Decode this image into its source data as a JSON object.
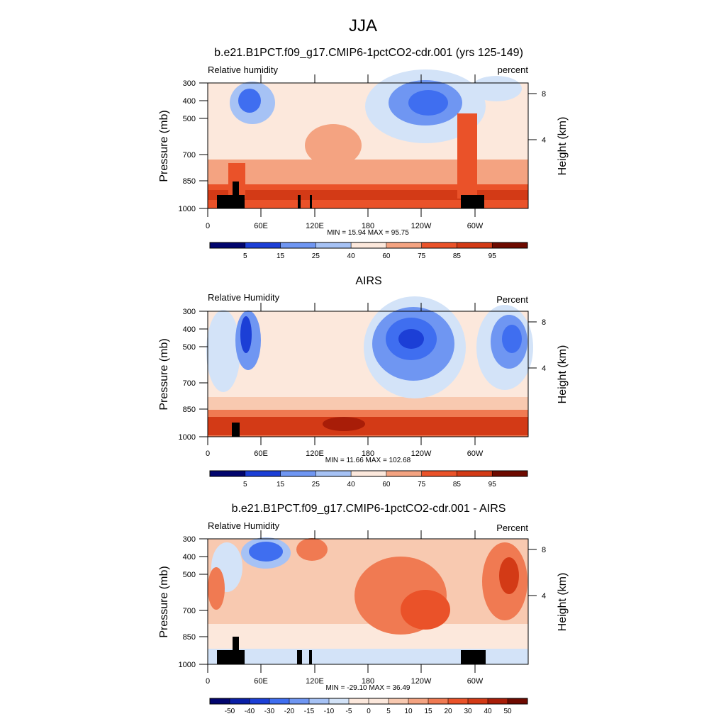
{
  "main_title": "JJA",
  "chart_data": [
    {
      "type": "heatmap",
      "title": "b.e21.B1PCT.f09_g17.CMIP6-1pctCO2-cdr.001 (yrs 125-149)",
      "left_label": "Relative humidity",
      "right_label": "percent",
      "ylabel": "Pressure (mb)",
      "y2label": "Height (km)",
      "x_ticks": [
        "0",
        "60E",
        "120E",
        "180",
        "120W",
        "60W"
      ],
      "y_ticks": [
        "300",
        "400",
        "500",
        "700",
        "850",
        "1000"
      ],
      "y2_ticks": [
        "8",
        "4"
      ],
      "stats": "MIN = 15.94 MAX = 95.75",
      "colorbar_labels": [
        "5",
        "15",
        "25",
        "40",
        "60",
        "75",
        "85",
        "95"
      ]
    },
    {
      "type": "heatmap",
      "title": "AIRS",
      "left_label": "Relative Humidity",
      "right_label": "Percent",
      "ylabel": "Pressure (mb)",
      "y2label": "Height (km)",
      "x_ticks": [
        "0",
        "60E",
        "120E",
        "180",
        "120W",
        "60W"
      ],
      "y_ticks": [
        "300",
        "400",
        "500",
        "700",
        "850",
        "1000"
      ],
      "y2_ticks": [
        "8",
        "4"
      ],
      "stats": "MIN = 11.66 MAX = 102.68",
      "colorbar_labels": [
        "5",
        "15",
        "25",
        "40",
        "60",
        "75",
        "85",
        "95"
      ]
    },
    {
      "type": "heatmap",
      "title": "b.e21.B1PCT.f09_g17.CMIP6-1pctCO2-cdr.001 - AIRS",
      "left_label": "Relative Humidity",
      "right_label": "Percent",
      "ylabel": "Pressure (mb)",
      "y2label": "Height (km)",
      "x_ticks": [
        "0",
        "60E",
        "120E",
        "180",
        "120W",
        "60W"
      ],
      "y_ticks": [
        "300",
        "400",
        "500",
        "700",
        "850",
        "1000"
      ],
      "y2_ticks": [
        "8",
        "4"
      ],
      "stats": "MIN = -29.10 MAX = 36.49",
      "colorbar_labels": [
        "-50",
        "-40",
        "-30",
        "-20",
        "-15",
        "-10",
        "-5",
        "0",
        "5",
        "10",
        "15",
        "20",
        "30",
        "40",
        "50"
      ]
    }
  ],
  "colors": {
    "scale": [
      "#02056e",
      "#0a1fa6",
      "#1c3fd6",
      "#3f6ef0",
      "#6f96f2",
      "#a6c2f5",
      "#d3e3f8",
      "#fce8dc",
      "#f8c9b0",
      "#f4a381",
      "#f07a52",
      "#ea5229",
      "#d33a16",
      "#a81d08",
      "#6e0a00"
    ],
    "terrain": "#000000"
  }
}
